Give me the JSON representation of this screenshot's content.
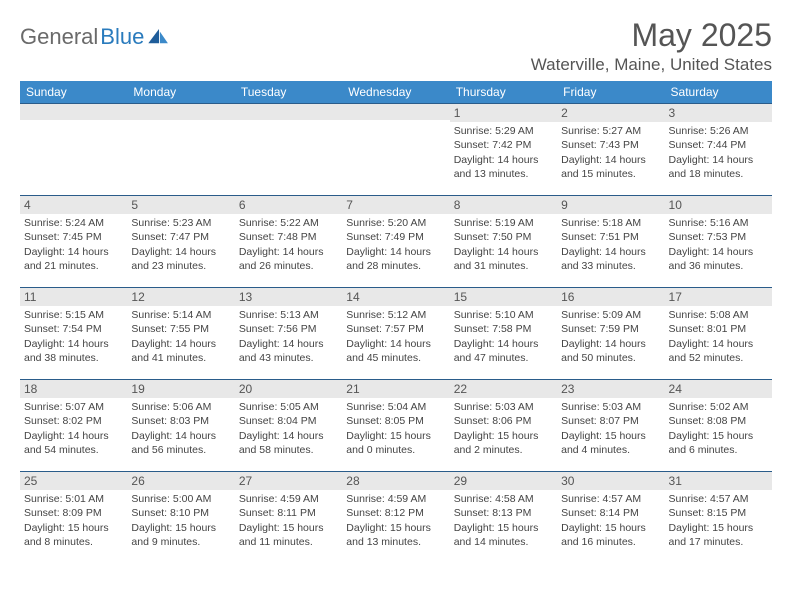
{
  "brand": {
    "part1": "General",
    "part2": "Blue"
  },
  "title": "May 2025",
  "location": "Waterville, Maine, United States",
  "colors": {
    "header_bg": "#3b89c9",
    "header_text": "#ffffff",
    "daynum_bg": "#e8e8e8",
    "border": "#2a5c8a",
    "text": "#444444",
    "title_text": "#555555",
    "logo_gray": "#6a6a6a",
    "logo_blue": "#2a7bbd"
  },
  "daysOfWeek": [
    "Sunday",
    "Monday",
    "Tuesday",
    "Wednesday",
    "Thursday",
    "Friday",
    "Saturday"
  ],
  "weeks": [
    [
      {
        "n": "",
        "sr": "",
        "ss": "",
        "dl": ""
      },
      {
        "n": "",
        "sr": "",
        "ss": "",
        "dl": ""
      },
      {
        "n": "",
        "sr": "",
        "ss": "",
        "dl": ""
      },
      {
        "n": "",
        "sr": "",
        "ss": "",
        "dl": ""
      },
      {
        "n": "1",
        "sr": "Sunrise: 5:29 AM",
        "ss": "Sunset: 7:42 PM",
        "dl": "Daylight: 14 hours and 13 minutes."
      },
      {
        "n": "2",
        "sr": "Sunrise: 5:27 AM",
        "ss": "Sunset: 7:43 PM",
        "dl": "Daylight: 14 hours and 15 minutes."
      },
      {
        "n": "3",
        "sr": "Sunrise: 5:26 AM",
        "ss": "Sunset: 7:44 PM",
        "dl": "Daylight: 14 hours and 18 minutes."
      }
    ],
    [
      {
        "n": "4",
        "sr": "Sunrise: 5:24 AM",
        "ss": "Sunset: 7:45 PM",
        "dl": "Daylight: 14 hours and 21 minutes."
      },
      {
        "n": "5",
        "sr": "Sunrise: 5:23 AM",
        "ss": "Sunset: 7:47 PM",
        "dl": "Daylight: 14 hours and 23 minutes."
      },
      {
        "n": "6",
        "sr": "Sunrise: 5:22 AM",
        "ss": "Sunset: 7:48 PM",
        "dl": "Daylight: 14 hours and 26 minutes."
      },
      {
        "n": "7",
        "sr": "Sunrise: 5:20 AM",
        "ss": "Sunset: 7:49 PM",
        "dl": "Daylight: 14 hours and 28 minutes."
      },
      {
        "n": "8",
        "sr": "Sunrise: 5:19 AM",
        "ss": "Sunset: 7:50 PM",
        "dl": "Daylight: 14 hours and 31 minutes."
      },
      {
        "n": "9",
        "sr": "Sunrise: 5:18 AM",
        "ss": "Sunset: 7:51 PM",
        "dl": "Daylight: 14 hours and 33 minutes."
      },
      {
        "n": "10",
        "sr": "Sunrise: 5:16 AM",
        "ss": "Sunset: 7:53 PM",
        "dl": "Daylight: 14 hours and 36 minutes."
      }
    ],
    [
      {
        "n": "11",
        "sr": "Sunrise: 5:15 AM",
        "ss": "Sunset: 7:54 PM",
        "dl": "Daylight: 14 hours and 38 minutes."
      },
      {
        "n": "12",
        "sr": "Sunrise: 5:14 AM",
        "ss": "Sunset: 7:55 PM",
        "dl": "Daylight: 14 hours and 41 minutes."
      },
      {
        "n": "13",
        "sr": "Sunrise: 5:13 AM",
        "ss": "Sunset: 7:56 PM",
        "dl": "Daylight: 14 hours and 43 minutes."
      },
      {
        "n": "14",
        "sr": "Sunrise: 5:12 AM",
        "ss": "Sunset: 7:57 PM",
        "dl": "Daylight: 14 hours and 45 minutes."
      },
      {
        "n": "15",
        "sr": "Sunrise: 5:10 AM",
        "ss": "Sunset: 7:58 PM",
        "dl": "Daylight: 14 hours and 47 minutes."
      },
      {
        "n": "16",
        "sr": "Sunrise: 5:09 AM",
        "ss": "Sunset: 7:59 PM",
        "dl": "Daylight: 14 hours and 50 minutes."
      },
      {
        "n": "17",
        "sr": "Sunrise: 5:08 AM",
        "ss": "Sunset: 8:01 PM",
        "dl": "Daylight: 14 hours and 52 minutes."
      }
    ],
    [
      {
        "n": "18",
        "sr": "Sunrise: 5:07 AM",
        "ss": "Sunset: 8:02 PM",
        "dl": "Daylight: 14 hours and 54 minutes."
      },
      {
        "n": "19",
        "sr": "Sunrise: 5:06 AM",
        "ss": "Sunset: 8:03 PM",
        "dl": "Daylight: 14 hours and 56 minutes."
      },
      {
        "n": "20",
        "sr": "Sunrise: 5:05 AM",
        "ss": "Sunset: 8:04 PM",
        "dl": "Daylight: 14 hours and 58 minutes."
      },
      {
        "n": "21",
        "sr": "Sunrise: 5:04 AM",
        "ss": "Sunset: 8:05 PM",
        "dl": "Daylight: 15 hours and 0 minutes."
      },
      {
        "n": "22",
        "sr": "Sunrise: 5:03 AM",
        "ss": "Sunset: 8:06 PM",
        "dl": "Daylight: 15 hours and 2 minutes."
      },
      {
        "n": "23",
        "sr": "Sunrise: 5:03 AM",
        "ss": "Sunset: 8:07 PM",
        "dl": "Daylight: 15 hours and 4 minutes."
      },
      {
        "n": "24",
        "sr": "Sunrise: 5:02 AM",
        "ss": "Sunset: 8:08 PM",
        "dl": "Daylight: 15 hours and 6 minutes."
      }
    ],
    [
      {
        "n": "25",
        "sr": "Sunrise: 5:01 AM",
        "ss": "Sunset: 8:09 PM",
        "dl": "Daylight: 15 hours and 8 minutes."
      },
      {
        "n": "26",
        "sr": "Sunrise: 5:00 AM",
        "ss": "Sunset: 8:10 PM",
        "dl": "Daylight: 15 hours and 9 minutes."
      },
      {
        "n": "27",
        "sr": "Sunrise: 4:59 AM",
        "ss": "Sunset: 8:11 PM",
        "dl": "Daylight: 15 hours and 11 minutes."
      },
      {
        "n": "28",
        "sr": "Sunrise: 4:59 AM",
        "ss": "Sunset: 8:12 PM",
        "dl": "Daylight: 15 hours and 13 minutes."
      },
      {
        "n": "29",
        "sr": "Sunrise: 4:58 AM",
        "ss": "Sunset: 8:13 PM",
        "dl": "Daylight: 15 hours and 14 minutes."
      },
      {
        "n": "30",
        "sr": "Sunrise: 4:57 AM",
        "ss": "Sunset: 8:14 PM",
        "dl": "Daylight: 15 hours and 16 minutes."
      },
      {
        "n": "31",
        "sr": "Sunrise: 4:57 AM",
        "ss": "Sunset: 8:15 PM",
        "dl": "Daylight: 15 hours and 17 minutes."
      }
    ]
  ]
}
